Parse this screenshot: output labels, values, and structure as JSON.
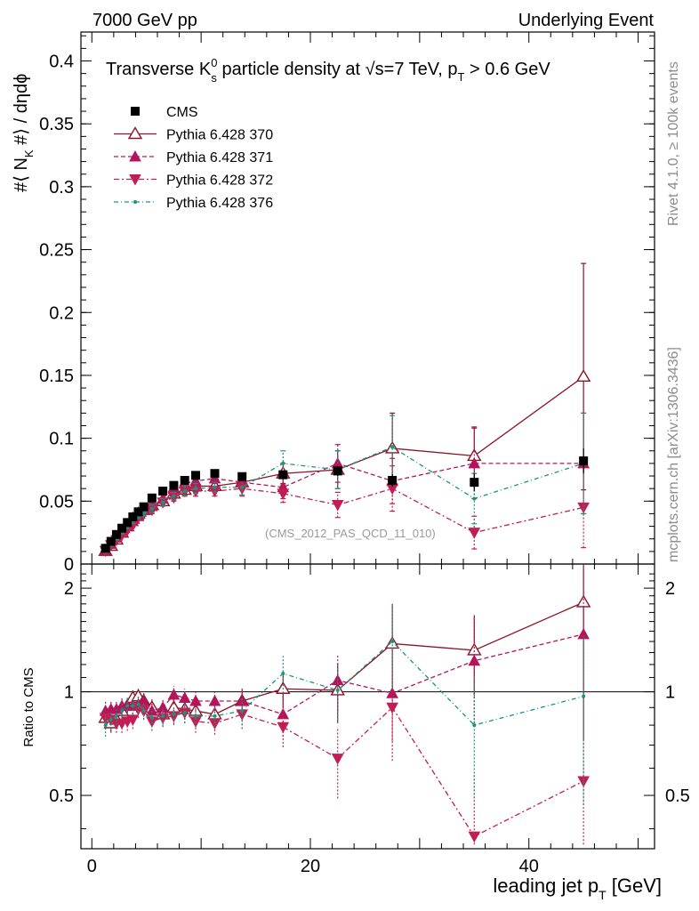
{
  "header": {
    "left": "7000 GeV pp",
    "right": "Underlying Event"
  },
  "side": {
    "rivet": "Rivet 4.1.0, ≥ 100k events",
    "mcplots": "mcplots.cern.ch [arXiv:1306.3436]"
  },
  "title_parts": {
    "a": "Transverse K",
    "a_sup": "0",
    "a_sub": "s",
    "b": " particle density at ",
    "sqrt": "√",
    "c": "s=7 TeV, p",
    "c_sub": "T",
    "d": " > 0.6 GeV"
  },
  "ylabel_parts": {
    "a": "#⟨ N",
    "sub": "K",
    "b": " #⟩ / dηdϕ"
  },
  "xlabel_parts": {
    "a": "leading jet p",
    "sub": "T",
    "b": " [GeV]"
  },
  "ratio_ylabel": "Ratio to CMS",
  "watermark": "(CMS_2012_PAS_QCD_11_010)",
  "chart_data": {
    "type": "scatter",
    "title": "Transverse K0s particle density at √s=7 TeV, pT > 0.6 GeV",
    "xlabel": "leading jet pT [GeV]",
    "ylabel": "#⟨ NK #⟩ / dηdϕ",
    "xlim": [
      -1,
      51.5
    ],
    "ylim": [
      0,
      0.423
    ],
    "x_ticks": [
      "0",
      "20",
      "40"
    ],
    "y_ticks": [
      "0",
      "0.05",
      "0.1",
      "0.15",
      "0.2",
      "0.25",
      "0.3",
      "0.35",
      "0.4"
    ],
    "ratio_ylim": [
      0.35,
      2.35
    ],
    "ratio_y_ticks": [
      "0.5",
      "1",
      "2"
    ],
    "x": [
      1.25,
      1.75,
      2.25,
      2.75,
      3.25,
      3.75,
      4.25,
      4.75,
      5.5,
      6.5,
      7.5,
      8.5,
      9.5,
      11.25,
      13.75,
      17.5,
      22.5,
      27.5,
      35,
      45
    ],
    "cms": {
      "name": "CMS",
      "values": [
        0.0125,
        0.018,
        0.0235,
        0.0285,
        0.033,
        0.0375,
        0.0415,
        0.0455,
        0.0525,
        0.058,
        0.0625,
        0.0665,
        0.0705,
        0.072,
        0.0695,
        0.071,
        0.074,
        0.0665,
        0.065,
        0.082
      ],
      "errors": [
        0.001,
        0.001,
        0.001,
        0.001,
        0.001,
        0.001,
        0.001,
        0.001,
        0.001,
        0.001,
        0.001,
        0.001,
        0.0015,
        0.0015,
        0.002,
        0.003,
        0.004,
        0.005,
        0.007,
        0.01
      ]
    },
    "series": [
      {
        "name": "Pythia 6.428 370",
        "color": "#8b1426",
        "marker": "open-triangle-up",
        "dash": "none",
        "values": [
          0.0105,
          0.0145,
          0.0195,
          0.025,
          0.03,
          0.036,
          0.04,
          0.043,
          0.047,
          0.05,
          0.056,
          0.059,
          0.062,
          0.062,
          0.065,
          0.072,
          0.075,
          0.092,
          0.086,
          0.149
        ],
        "errors": [
          0.001,
          0.001,
          0.001,
          0.001,
          0.001,
          0.002,
          0.002,
          0.002,
          0.002,
          0.003,
          0.003,
          0.004,
          0.004,
          0.004,
          0.006,
          0.008,
          0.015,
          0.028,
          0.023,
          0.09
        ]
      },
      {
        "name": "Pythia 6.428 371",
        "color": "#b5145b",
        "marker": "filled-triangle-up",
        "dash": "5,3",
        "values": [
          0.011,
          0.016,
          0.021,
          0.026,
          0.03,
          0.034,
          0.038,
          0.043,
          0.046,
          0.052,
          0.061,
          0.064,
          0.066,
          0.068,
          0.065,
          0.061,
          0.08,
          0.066,
          0.08,
          0.08
        ],
        "errors": [
          0.001,
          0.001,
          0.001,
          0.001,
          0.002,
          0.002,
          0.002,
          0.002,
          0.003,
          0.003,
          0.004,
          0.004,
          0.004,
          0.004,
          0.006,
          0.009,
          0.015,
          0.018,
          0.028,
          0.04
        ]
      },
      {
        "name": "Pythia 6.428 372",
        "color": "#c21e56",
        "marker": "filled-triangle-down",
        "dash": "6,3,2,3",
        "values": [
          0.0105,
          0.015,
          0.019,
          0.023,
          0.027,
          0.031,
          0.037,
          0.04,
          0.043,
          0.049,
          0.053,
          0.058,
          0.058,
          0.058,
          0.06,
          0.056,
          0.047,
          0.06,
          0.025,
          0.045
        ],
        "errors": [
          0.001,
          0.001,
          0.001,
          0.001,
          0.002,
          0.002,
          0.002,
          0.002,
          0.003,
          0.003,
          0.003,
          0.004,
          0.004,
          0.004,
          0.006,
          0.007,
          0.01,
          0.018,
          0.013,
          0.032
        ]
      },
      {
        "name": "Pythia 6.428 376",
        "color": "#16967d",
        "marker": "dot",
        "dash": "5,3,1,3",
        "values": [
          0.01,
          0.015,
          0.02,
          0.025,
          0.03,
          0.034,
          0.038,
          0.04,
          0.044,
          0.049,
          0.054,
          0.058,
          0.06,
          0.061,
          0.061,
          0.08,
          0.075,
          0.093,
          0.052,
          0.08
        ],
        "errors": [
          0.001,
          0.001,
          0.001,
          0.001,
          0.002,
          0.002,
          0.002,
          0.002,
          0.003,
          0.003,
          0.003,
          0.004,
          0.004,
          0.004,
          0.006,
          0.01,
          0.015,
          0.025,
          0.02,
          0.04
        ]
      }
    ],
    "ratios": [
      [
        0.84,
        0.81,
        0.83,
        0.88,
        0.91,
        0.96,
        0.97,
        0.94,
        0.9,
        0.86,
        0.9,
        0.89,
        0.88,
        0.86,
        0.94,
        1.02,
        1.01,
        1.38,
        1.32,
        1.82
      ],
      [
        0.88,
        0.89,
        0.89,
        0.91,
        0.91,
        0.91,
        0.92,
        0.94,
        0.88,
        0.9,
        0.98,
        0.96,
        0.94,
        0.94,
        0.94,
        0.86,
        1.08,
        0.99,
        1.23,
        1.47
      ],
      [
        0.84,
        0.83,
        0.81,
        0.81,
        0.82,
        0.83,
        0.89,
        0.88,
        0.82,
        0.84,
        0.85,
        0.87,
        0.82,
        0.81,
        0.86,
        0.79,
        0.64,
        0.9,
        0.38,
        0.55
      ],
      [
        0.8,
        0.83,
        0.85,
        0.88,
        0.91,
        0.91,
        0.92,
        0.88,
        0.84,
        0.85,
        0.86,
        0.87,
        0.85,
        0.85,
        0.88,
        1.13,
        1.01,
        1.4,
        0.8,
        0.97
      ]
    ],
    "ratio_errors": [
      [
        0.06,
        0.05,
        0.05,
        0.05,
        0.05,
        0.05,
        0.05,
        0.05,
        0.05,
        0.05,
        0.05,
        0.06,
        0.06,
        0.06,
        0.08,
        0.12,
        0.2,
        0.42,
        0.35,
        1.1
      ],
      [
        0.06,
        0.05,
        0.05,
        0.05,
        0.05,
        0.05,
        0.05,
        0.05,
        0.05,
        0.05,
        0.06,
        0.06,
        0.06,
        0.06,
        0.08,
        0.12,
        0.2,
        0.27,
        0.42,
        0.5
      ],
      [
        0.06,
        0.05,
        0.05,
        0.05,
        0.05,
        0.05,
        0.05,
        0.05,
        0.05,
        0.05,
        0.05,
        0.06,
        0.06,
        0.06,
        0.08,
        0.1,
        0.15,
        0.27,
        0.2,
        0.4
      ],
      [
        0.06,
        0.05,
        0.05,
        0.05,
        0.05,
        0.05,
        0.05,
        0.05,
        0.05,
        0.05,
        0.05,
        0.06,
        0.06,
        0.06,
        0.08,
        0.14,
        0.2,
        0.38,
        0.31,
        0.5
      ]
    ]
  }
}
